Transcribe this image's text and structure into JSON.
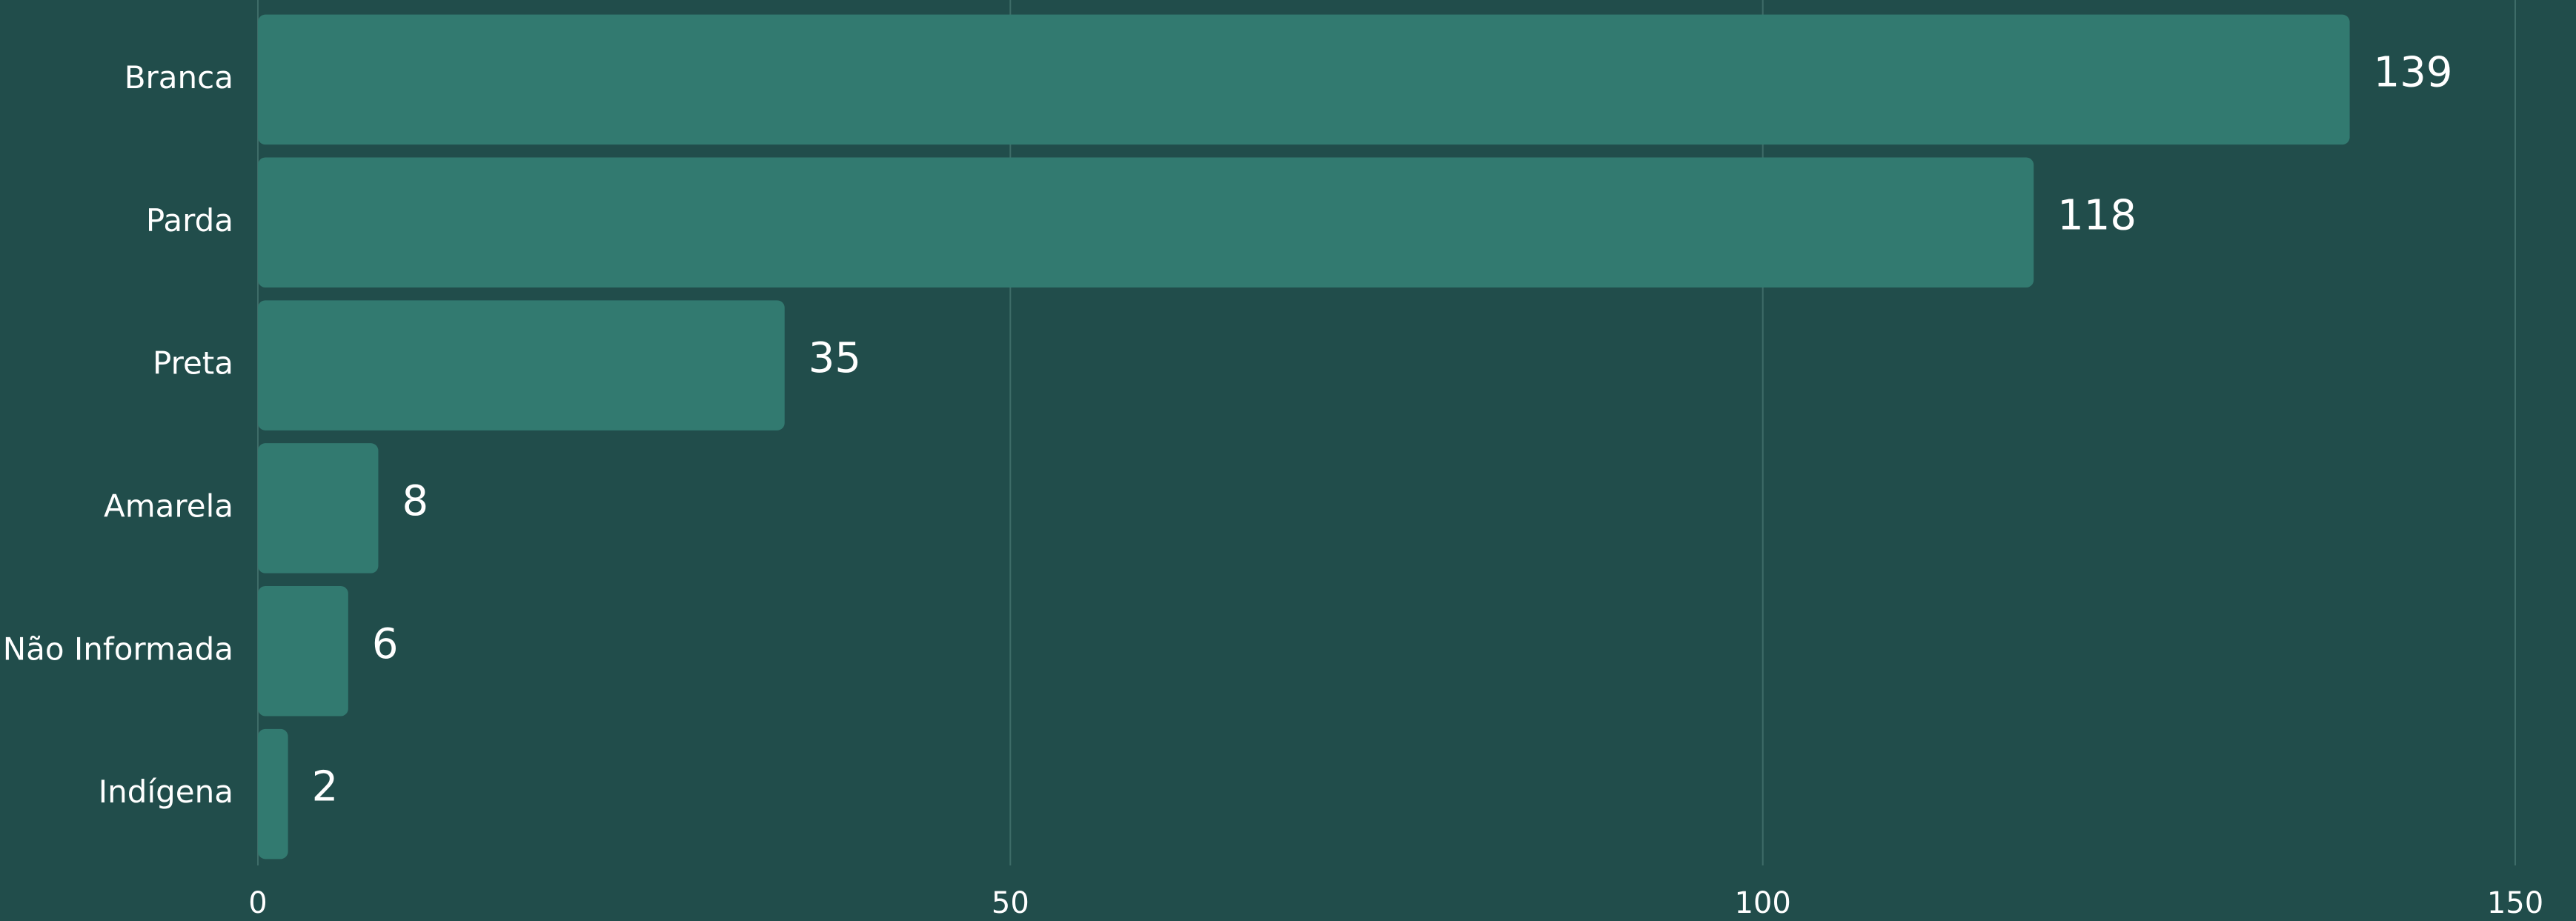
{
  "chart_data": {
    "type": "bar",
    "orientation": "horizontal",
    "categories": [
      "Branca",
      "Parda",
      "Preta",
      "Amarela",
      "Não Informada",
      "Indígena"
    ],
    "values": [
      139,
      118,
      35,
      8,
      6,
      2
    ],
    "color": "#327a70",
    "xlim": [
      0,
      150
    ],
    "xticks": [
      0,
      50,
      100,
      150
    ],
    "grid": true
  }
}
